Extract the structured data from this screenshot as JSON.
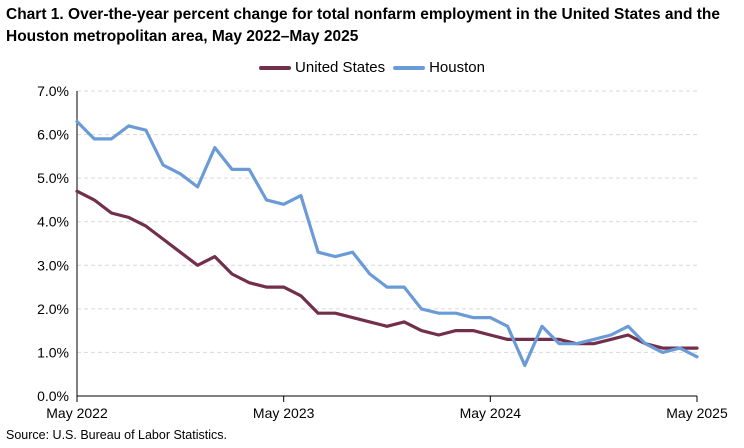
{
  "chart_data": {
    "type": "line",
    "title": "Chart 1. Over-the-year percent change for total nonfarm employment in the United States and the Houston metropolitan area, May 2022–May 2025",
    "xlabel": "",
    "ylabel": "",
    "ylim": [
      0,
      7
    ],
    "y_ticks": [
      "0.0%",
      "1.0%",
      "2.0%",
      "3.0%",
      "4.0%",
      "5.0%",
      "6.0%",
      "7.0%"
    ],
    "x_tick_labels": [
      "May 2022",
      "May 2023",
      "May 2024",
      "May 2025"
    ],
    "x_tick_indices": [
      0,
      12,
      24,
      36
    ],
    "grid": true,
    "legend_position": "top-center",
    "categories": [
      "May 2022",
      "Jun 2022",
      "Jul 2022",
      "Aug 2022",
      "Sep 2022",
      "Oct 2022",
      "Nov 2022",
      "Dec 2022",
      "Jan 2023",
      "Feb 2023",
      "Mar 2023",
      "Apr 2023",
      "May 2023",
      "Jun 2023",
      "Jul 2023",
      "Aug 2023",
      "Sep 2023",
      "Oct 2023",
      "Nov 2023",
      "Dec 2023",
      "Jan 2024",
      "Feb 2024",
      "Mar 2024",
      "Apr 2024",
      "May 2024",
      "Jun 2024",
      "Jul 2024",
      "Aug 2024",
      "Sep 2024",
      "Oct 2024",
      "Nov 2024",
      "Dec 2024",
      "Jan 2025",
      "Feb 2025",
      "Mar 2025",
      "Apr 2025",
      "May 2025"
    ],
    "series": [
      {
        "name": "United States",
        "color": "#722f4b",
        "values": [
          4.7,
          4.5,
          4.2,
          4.1,
          3.9,
          3.6,
          3.3,
          3.0,
          3.2,
          2.8,
          2.6,
          2.5,
          2.5,
          2.3,
          1.9,
          1.9,
          1.8,
          1.7,
          1.6,
          1.7,
          1.5,
          1.4,
          1.5,
          1.5,
          1.4,
          1.3,
          1.3,
          1.3,
          1.3,
          1.2,
          1.2,
          1.3,
          1.4,
          1.2,
          1.1,
          1.1,
          1.1
        ]
      },
      {
        "name": "Houston",
        "color": "#6b9bd7",
        "values": [
          6.3,
          5.9,
          5.9,
          6.2,
          6.1,
          5.3,
          5.1,
          4.8,
          5.7,
          5.2,
          5.2,
          4.5,
          4.4,
          4.6,
          3.3,
          3.2,
          3.3,
          2.8,
          2.5,
          2.5,
          2.0,
          1.9,
          1.9,
          1.8,
          1.8,
          1.6,
          0.7,
          1.6,
          1.2,
          1.2,
          1.3,
          1.4,
          1.6,
          1.2,
          1.0,
          1.1,
          0.9
        ]
      }
    ]
  },
  "source": "Source: U.S. Bureau of Labor Statistics."
}
